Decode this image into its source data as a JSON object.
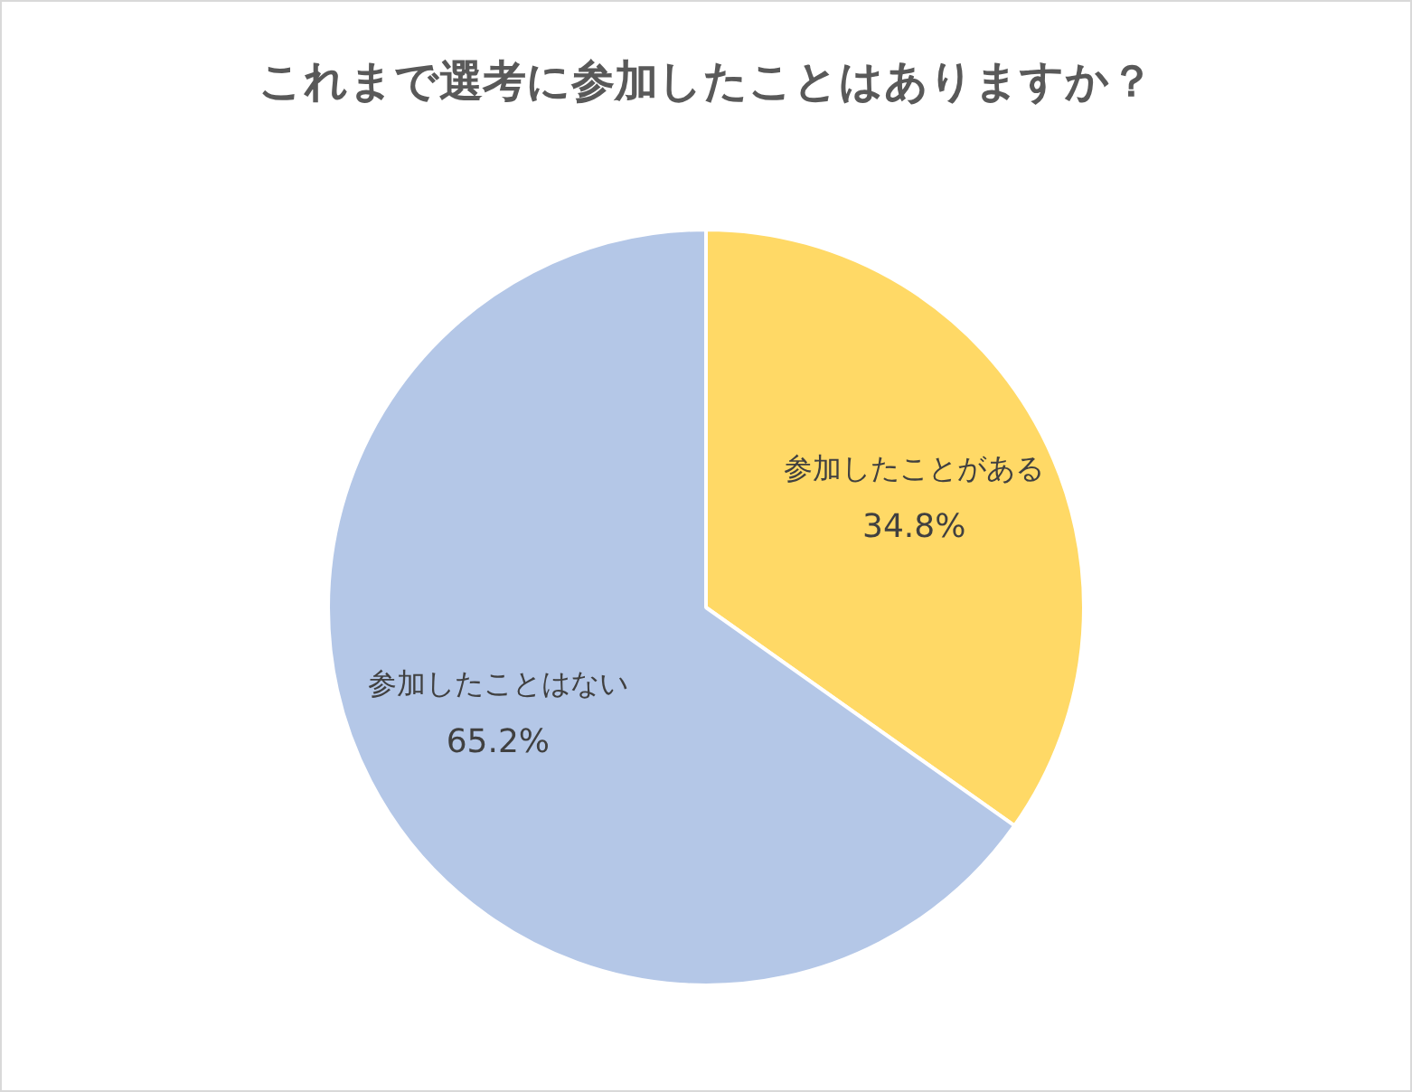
{
  "chart_data": {
    "type": "pie",
    "title": "これまで選考に参加したことはありますか？",
    "categories": [
      "参加したことがある",
      "参加したことはない"
    ],
    "values": [
      34.8,
      65.2
    ],
    "colors": [
      "#ffd966",
      "#b4c7e7"
    ],
    "value_labels": [
      "34.8%",
      "65.2%"
    ]
  }
}
